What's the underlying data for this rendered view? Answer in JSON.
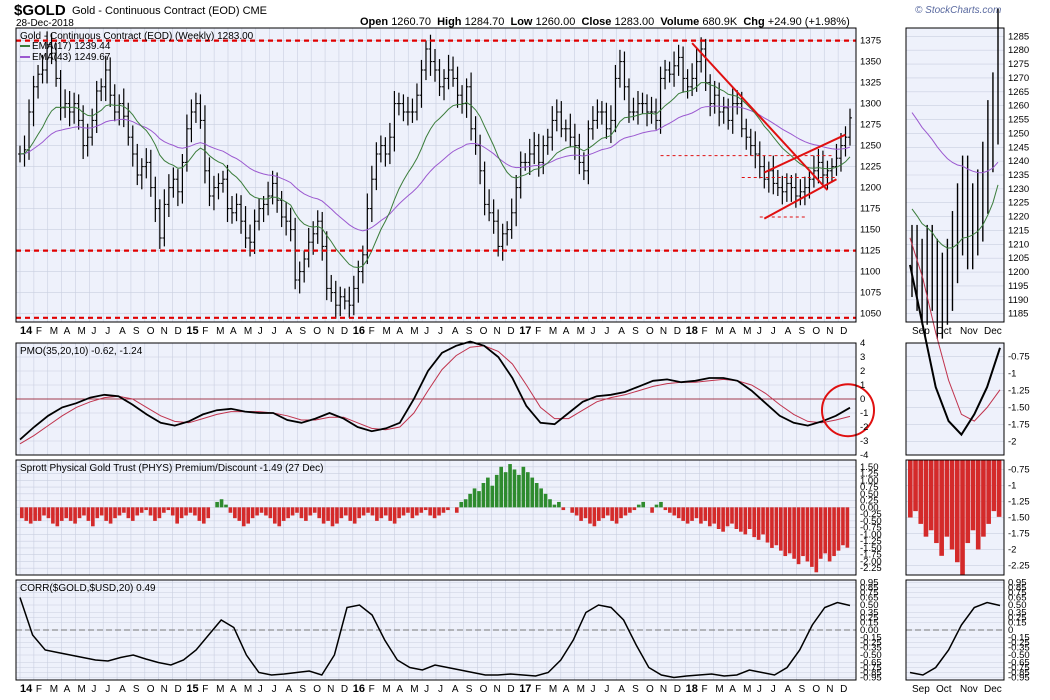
{
  "header": {
    "symbol": "$GOLD",
    "name": "Gold - Continuous Contract (EOD)",
    "exchange": "CME",
    "date": "28-Dec-2018",
    "open_label": "Open",
    "open": "1260.70",
    "high_label": "High",
    "high": "1284.70",
    "low_label": "Low",
    "low": "1260.00",
    "close_label": "Close",
    "close": "1283.00",
    "volume_label": "Volume",
    "volume": "680.9K",
    "chg_label": "Chg",
    "chg": "+24.90 (+1.98%)",
    "watermark": "© StockCharts.com"
  },
  "colors": {
    "price_bars": "#000000",
    "ema17": "#3b7d3b",
    "ema43": "#9b59d0",
    "pmo": "#000000",
    "pmo_signal": "#c0334d",
    "premium_positive": "#2e8b2e",
    "premium_negative": "#d42a2a",
    "support_lines": "#e00000",
    "annotation": "#e01010",
    "panel_bg": "#eef1fb"
  },
  "chart_data": [
    {
      "type": "ohlc",
      "title": "Gold - Continuous Contract (EOD) (Weekly) 1283.00",
      "period": "Weekly",
      "x_range": [
        "2014-01",
        "2018-12"
      ],
      "year_labels": [
        "14",
        "15",
        "16",
        "17",
        "18"
      ],
      "month_labels": [
        "F",
        "M",
        "A",
        "M",
        "J",
        "J",
        "A",
        "S",
        "O",
        "N",
        "D"
      ],
      "ylim": [
        1040,
        1390
      ],
      "yticks": [
        1050,
        1075,
        1100,
        1125,
        1150,
        1175,
        1200,
        1225,
        1250,
        1275,
        1300,
        1325,
        1350,
        1375
      ],
      "legend": [
        {
          "name": "EMA(17) 1239.44",
          "color": "#3b7d3b"
        },
        {
          "name": "EMA(43) 1249.67",
          "color": "#9b59d0"
        }
      ],
      "closes": [
        1240,
        1245,
        1290,
        1320,
        1335,
        1340,
        1370,
        1360,
        1330,
        1295,
        1300,
        1290,
        1300,
        1280,
        1250,
        1260,
        1280,
        1315,
        1320,
        1340,
        1310,
        1290,
        1300,
        1285,
        1260,
        1240,
        1215,
        1225,
        1230,
        1200,
        1175,
        1140,
        1180,
        1200,
        1210,
        1195,
        1230,
        1270,
        1290,
        1300,
        1280,
        1220,
        1190,
        1200,
        1205,
        1210,
        1175,
        1170,
        1180,
        1160,
        1140,
        1135,
        1160,
        1175,
        1180,
        1190,
        1205,
        1185,
        1165,
        1160,
        1150,
        1090,
        1100,
        1115,
        1135,
        1145,
        1160,
        1130,
        1080,
        1075,
        1060,
        1070,
        1065,
        1060,
        1080,
        1100,
        1120,
        1175,
        1210,
        1240,
        1250,
        1240,
        1260,
        1300,
        1300,
        1290,
        1290,
        1290,
        1310,
        1340,
        1365,
        1350,
        1340,
        1320,
        1330,
        1340,
        1330,
        1310,
        1300,
        1320,
        1270,
        1250,
        1220,
        1180,
        1170,
        1160,
        1130,
        1145,
        1150,
        1170,
        1200,
        1230,
        1230,
        1240,
        1250,
        1230,
        1250,
        1260,
        1280,
        1290,
        1270,
        1270,
        1260,
        1250,
        1230,
        1220,
        1270,
        1280,
        1290,
        1290,
        1270,
        1280,
        1330,
        1350,
        1320,
        1290,
        1290,
        1300,
        1300,
        1290,
        1290,
        1280,
        1330,
        1340,
        1335,
        1345,
        1355,
        1330,
        1320,
        1330,
        1350,
        1365,
        1325,
        1300,
        1310,
        1290,
        1295,
        1280,
        1300,
        1300,
        1270,
        1260,
        1250,
        1240,
        1225,
        1210,
        1220,
        1205,
        1200,
        1195,
        1205,
        1200,
        1190,
        1195,
        1200,
        1210,
        1220,
        1230,
        1215,
        1220,
        1225,
        1235,
        1250,
        1260,
        1283
      ],
      "support_levels": [
        1375,
        1125,
        1045
      ]
    },
    {
      "type": "line",
      "title": "PMO(35,20,10) -0.62, -1.24",
      "series": [
        {
          "name": "PMO(35,20,10)",
          "last": -0.62
        },
        {
          "name": "Signal",
          "last": -1.24
        }
      ],
      "ylim": [
        -4,
        4
      ],
      "yticks": [
        -4,
        -3,
        -2,
        -1,
        0,
        1,
        2,
        3,
        4
      ],
      "pmo_path": [
        -2.9,
        -2.0,
        -1.2,
        -0.6,
        -0.3,
        0.1,
        0.3,
        0.2,
        -0.4,
        -1.1,
        -1.7,
        -1.9,
        -1.6,
        -1.1,
        -0.8,
        -0.7,
        -0.9,
        -1.0,
        -1.0,
        -1.5,
        -1.7,
        -1.4,
        -1.0,
        -1.4,
        -2.0,
        -2.3,
        -2.1,
        -1.7,
        0.0,
        2.0,
        3.3,
        3.8,
        4.1,
        3.8,
        3.0,
        1.5,
        -0.5,
        -1.7,
        -1.8,
        -1.0,
        -0.2,
        0.2,
        0.3,
        0.5,
        0.9,
        1.3,
        1.4,
        1.2,
        1.3,
        1.5,
        1.5,
        1.3,
        0.6,
        -0.3,
        -1.2,
        -1.7,
        -1.9,
        -1.6,
        -1.2,
        -0.62
      ],
      "signal_path": [
        -3.2,
        -2.6,
        -1.9,
        -1.2,
        -0.6,
        -0.2,
        0.1,
        0.2,
        0.0,
        -0.6,
        -1.2,
        -1.6,
        -1.7,
        -1.4,
        -1.1,
        -0.9,
        -0.9,
        -0.9,
        -1.0,
        -1.2,
        -1.5,
        -1.5,
        -1.3,
        -1.3,
        -1.7,
        -2.1,
        -2.2,
        -2.0,
        -1.0,
        0.6,
        2.1,
        3.1,
        3.7,
        3.8,
        3.4,
        2.5,
        1.0,
        -0.6,
        -1.4,
        -1.4,
        -0.8,
        -0.2,
        0.1,
        0.3,
        0.6,
        0.9,
        1.1,
        1.2,
        1.2,
        1.3,
        1.4,
        1.3,
        1.0,
        0.4,
        -0.4,
        -1.1,
        -1.6,
        -1.7,
        -1.5,
        -1.24
      ]
    },
    {
      "type": "bar",
      "title": "Sprott Physical Gold Trust (PHYS) Premium/Discount -1.49 (27 Dec)",
      "series_name": "PHYS Premium/Discount",
      "ylim": [
        -2.5,
        1.75
      ],
      "yticks": [
        -2.25,
        -2.0,
        -1.75,
        -1.5,
        -1.25,
        -1.0,
        -0.75,
        -0.5,
        -0.25,
        0.0,
        0.25,
        0.5,
        0.75,
        1.0,
        1.25,
        1.5
      ],
      "values": [
        -0.4,
        -0.5,
        -0.6,
        -0.5,
        -0.5,
        -0.3,
        -0.4,
        -0.6,
        -0.7,
        -0.5,
        -0.4,
        -0.5,
        -0.6,
        -0.4,
        -0.3,
        -0.5,
        -0.7,
        -0.4,
        -0.3,
        -0.5,
        -0.6,
        -0.4,
        -0.3,
        -0.2,
        -0.4,
        -0.5,
        -0.3,
        -0.2,
        -0.1,
        -0.3,
        -0.5,
        -0.4,
        -0.2,
        -0.1,
        -0.3,
        -0.6,
        -0.4,
        -0.3,
        -0.2,
        -0.3,
        -0.5,
        -0.6,
        -0.4,
        0.0,
        0.2,
        0.3,
        0.1,
        -0.2,
        -0.4,
        -0.5,
        -0.7,
        -0.6,
        -0.4,
        -0.3,
        -0.2,
        -0.3,
        -0.4,
        -0.6,
        -0.7,
        -0.5,
        -0.4,
        -0.3,
        -0.2,
        -0.4,
        -0.5,
        -0.3,
        -0.2,
        -0.4,
        -0.6,
        -0.5,
        -0.7,
        -0.6,
        -0.4,
        -0.3,
        -0.5,
        -0.6,
        -0.4,
        -0.3,
        -0.2,
        -0.3,
        -0.5,
        -0.4,
        -0.3,
        -0.5,
        -0.6,
        -0.4,
        -0.3,
        -0.2,
        -0.4,
        -0.3,
        -0.2,
        -0.1,
        -0.3,
        -0.4,
        -0.3,
        -0.2,
        -0.1,
        0.0,
        -0.2,
        0.2,
        0.3,
        0.5,
        0.7,
        0.6,
        0.9,
        1.1,
        0.8,
        1.2,
        1.5,
        1.3,
        1.6,
        1.4,
        1.2,
        1.5,
        1.3,
        1.1,
        0.9,
        0.7,
        0.5,
        0.3,
        0.1,
        0.2,
        -0.1,
        0.0,
        -0.2,
        -0.3,
        -0.5,
        -0.4,
        -0.6,
        -0.7,
        -0.5,
        -0.4,
        -0.3,
        -0.5,
        -0.6,
        -0.4,
        -0.3,
        -0.2,
        -0.1,
        0.1,
        0.2,
        0.0,
        -0.2,
        0.1,
        0.2,
        -0.1,
        -0.2,
        -0.3,
        -0.4,
        -0.5,
        -0.6,
        -0.5,
        -0.4,
        -0.6,
        -0.5,
        -0.7,
        -0.6,
        -0.8,
        -0.9,
        -0.7,
        -0.6,
        -0.8,
        -0.9,
        -1.0,
        -0.8,
        -1.1,
        -1.2,
        -1.0,
        -1.3,
        -1.5,
        -1.4,
        -1.6,
        -1.8,
        -1.7,
        -1.9,
        -2.1,
        -1.8,
        -2.0,
        -2.2,
        -2.4,
        -1.9,
        -1.7,
        -2.0,
        -1.8,
        -1.6,
        -1.4,
        -1.49
      ]
    },
    {
      "type": "line",
      "title": "CORR($GOLD,$USD,20) 0.49",
      "series_name": "CORR($GOLD,$USD,20)",
      "last": 0.49,
      "ylim": [
        -1.0,
        1.0
      ],
      "yticks": [
        -0.95,
        -0.85,
        -0.75,
        -0.65,
        -0.5,
        -0.35,
        -0.25,
        -0.15,
        0.0,
        0.15,
        0.25,
        0.35,
        0.5,
        0.65,
        0.75,
        0.85,
        0.95
      ],
      "values": [
        0.65,
        -0.1,
        -0.4,
        -0.45,
        -0.5,
        -0.55,
        -0.6,
        -0.62,
        -0.55,
        -0.5,
        -0.58,
        -0.65,
        -0.7,
        -0.6,
        -0.4,
        -0.1,
        0.2,
        0.05,
        -0.5,
        -0.85,
        -0.9,
        -0.88,
        -0.85,
        -0.82,
        -0.9,
        -0.5,
        0.45,
        0.5,
        0.3,
        -0.2,
        -0.6,
        -0.75,
        -0.8,
        -0.7,
        -0.75,
        -0.8,
        -0.85,
        -0.9,
        -0.9,
        -0.88,
        -0.9,
        -0.92,
        -0.85,
        -0.6,
        -0.2,
        0.35,
        0.5,
        0.45,
        0.2,
        -0.3,
        -0.75,
        -0.9,
        -0.95,
        -0.92,
        -0.9,
        -0.88,
        -0.92,
        -0.9,
        -0.8,
        -0.85,
        -0.9,
        -0.75,
        -0.4,
        0.1,
        0.45,
        0.55,
        0.49
      ]
    }
  ],
  "detail_panel": {
    "month_labels": [
      "Sep",
      "Oct",
      "Nov",
      "Dec"
    ],
    "price_ticks": [
      1185,
      1190,
      1195,
      1200,
      1205,
      1210,
      1215,
      1220,
      1225,
      1230,
      1235,
      1240,
      1245,
      1250,
      1255,
      1260,
      1265,
      1270,
      1275,
      1280,
      1285
    ],
    "pmo_ticks": [
      -2.0,
      -1.75,
      -1.5,
      -1.25,
      -1.0,
      -0.75
    ],
    "phys_ticks": [
      -2.25,
      -2.0,
      -1.75,
      -1.5,
      -1.25,
      -1.0,
      -0.75
    ],
    "corr_ticks": [
      -0.95,
      -0.85,
      -0.75,
      -0.65,
      -0.5,
      -0.35,
      -0.25,
      -0.15,
      0.0,
      0.15,
      0.25,
      0.35,
      0.5,
      0.65,
      0.75,
      0.85,
      0.95
    ]
  }
}
